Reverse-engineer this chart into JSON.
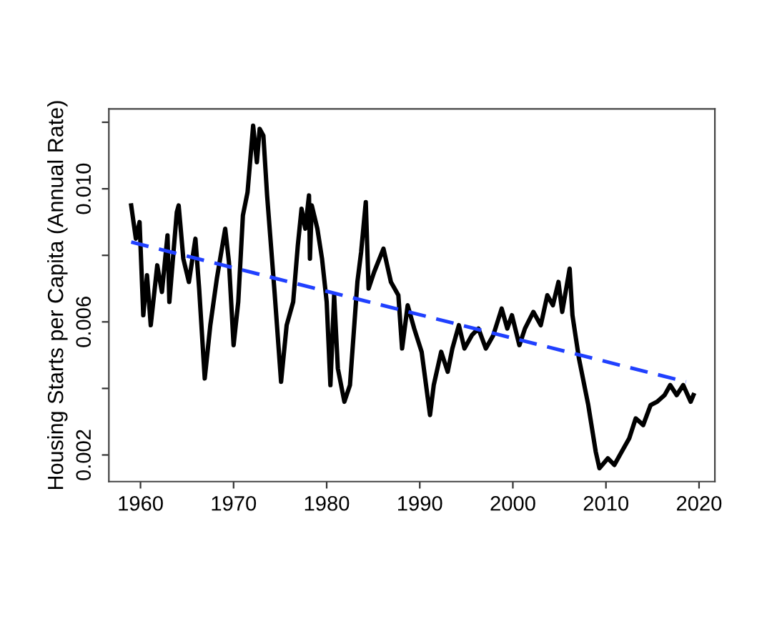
{
  "chart_data": {
    "type": "line",
    "ylabel": "Housing Starts per Capita (Annual Rate)",
    "xlim": [
      1956.6,
      2021.7
    ],
    "ylim": [
      0.0012,
      0.0124
    ],
    "xticks": [
      1960,
      1970,
      1980,
      1990,
      2000,
      2010,
      2020
    ],
    "yticks": [
      0.002,
      {
        "value": 0.004,
        "label": null
      },
      0.006,
      {
        "value": 0.008,
        "label": null
      },
      {
        "value": 0.01,
        "label": "0.010"
      },
      {
        "value": 0.012,
        "label": null
      }
    ],
    "series": [
      {
        "color": "#000000",
        "line_style": "solid",
        "x": [
          1959.0,
          1959.5,
          1959.9,
          1960.3,
          1960.7,
          1961.1,
          1961.8,
          1962.3,
          1962.9,
          1963.1,
          1963.9,
          1964.1,
          1964.6,
          1965.2,
          1965.9,
          1966.3,
          1966.9,
          1967.5,
          1968.2,
          1969.1,
          1969.5,
          1970.0,
          1970.5,
          1971.0,
          1971.5,
          1972.1,
          1972.5,
          1972.8,
          1973.2,
          1973.6,
          1974.4,
          1975.1,
          1975.7,
          1976.4,
          1976.9,
          1977.3,
          1977.7,
          1978.1,
          1978.2,
          1978.4,
          1979.0,
          1979.5,
          1980.0,
          1980.4,
          1980.8,
          1981.2,
          1981.9,
          1982.5,
          1983.3,
          1983.7,
          1984.2,
          1984.5,
          1985.1,
          1986.1,
          1986.9,
          1987.7,
          1988.1,
          1988.7,
          1989.4,
          1990.2,
          1991.1,
          1991.5,
          1992.3,
          1993.0,
          1993.5,
          1994.2,
          1994.8,
          1995.6,
          1996.3,
          1997.1,
          1997.9,
          1998.8,
          1999.4,
          1999.9,
          2000.7,
          2001.3,
          2002.2,
          2003.0,
          2003.7,
          2004.3,
          2004.9,
          2005.3,
          2006.1,
          2006.4,
          2007.1,
          2008.1,
          2008.9,
          2009.3,
          2010.2,
          2010.9,
          2011.7,
          2012.5,
          2013.2,
          2014.0,
          2014.8,
          2015.5,
          2016.3,
          2016.9,
          2017.6,
          2018.3,
          2019.1,
          2019.4
        ],
        "values": [
          0.0095,
          0.0085,
          0.009,
          0.0062,
          0.0074,
          0.0059,
          0.0077,
          0.0069,
          0.0086,
          0.0066,
          0.0093,
          0.0095,
          0.0079,
          0.0072,
          0.0085,
          0.007,
          0.0043,
          0.0059,
          0.0073,
          0.0088,
          0.0078,
          0.0053,
          0.0066,
          0.0092,
          0.0099,
          0.0119,
          0.0108,
          0.0118,
          0.0116,
          0.0098,
          0.0069,
          0.0042,
          0.0059,
          0.0066,
          0.0083,
          0.0094,
          0.0088,
          0.0098,
          0.0079,
          0.0095,
          0.0088,
          0.0079,
          0.0066,
          0.0041,
          0.0068,
          0.0046,
          0.0036,
          0.0041,
          0.0072,
          0.0081,
          0.0096,
          0.007,
          0.0075,
          0.0082,
          0.0072,
          0.0068,
          0.0052,
          0.0065,
          0.0058,
          0.0051,
          0.0032,
          0.0041,
          0.0051,
          0.0045,
          0.0052,
          0.0059,
          0.0052,
          0.0056,
          0.0058,
          0.0052,
          0.0056,
          0.0064,
          0.0058,
          0.0062,
          0.0053,
          0.0058,
          0.0063,
          0.0059,
          0.0068,
          0.0065,
          0.0072,
          0.0063,
          0.0076,
          0.0062,
          0.0049,
          0.0035,
          0.0021,
          0.0016,
          0.0019,
          0.0017,
          0.0021,
          0.0025,
          0.0031,
          0.0029,
          0.0035,
          0.0036,
          0.0038,
          0.0041,
          0.0038,
          0.0041,
          0.0036,
          0.0038
        ]
      },
      {
        "color": "#2040ff",
        "line_style": "dashed",
        "x": [
          1959.0,
          2018.6
        ],
        "values": [
          0.0084,
          0.0042
        ]
      }
    ]
  }
}
